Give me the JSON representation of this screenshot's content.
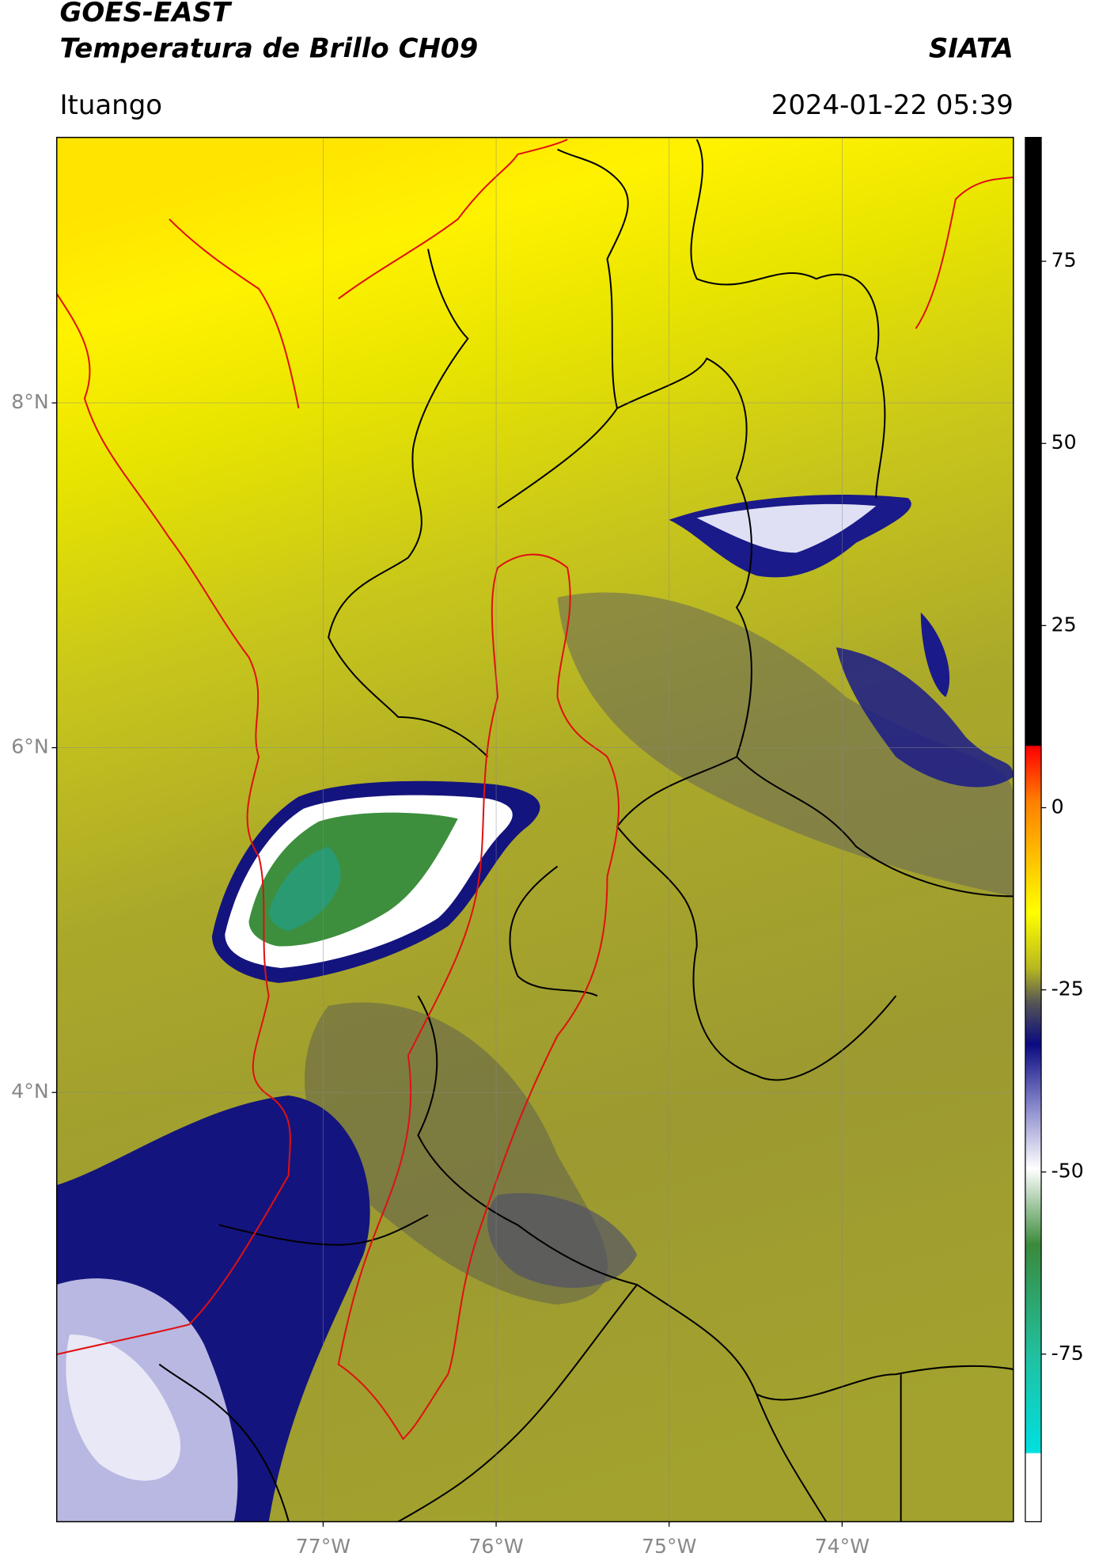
{
  "header": {
    "title": "GOES-EAST",
    "subtitle": "Temperatura de Brillo CH09",
    "brand": "SIATA",
    "location": "Ituango",
    "datetime": "2024-01-22 05:39"
  },
  "map": {
    "xlim": [
      -78.54,
      -73.01
    ],
    "ylim": [
      1.51,
      9.54
    ],
    "xticks": [
      {
        "value": -77,
        "label": "77°W"
      },
      {
        "value": -76,
        "label": "76°W"
      },
      {
        "value": -75,
        "label": "75°W"
      },
      {
        "value": -74,
        "label": "74°W"
      }
    ],
    "yticks": [
      {
        "value": 8,
        "label": "8°N"
      },
      {
        "value": 6,
        "label": "6°N"
      },
      {
        "value": 4,
        "label": "4°N"
      }
    ],
    "grid": true
  },
  "colorbar": {
    "lim": [
      -98,
      92
    ],
    "ticks": [
      75,
      50,
      25,
      0,
      -25,
      -50,
      -75
    ]
  }
}
